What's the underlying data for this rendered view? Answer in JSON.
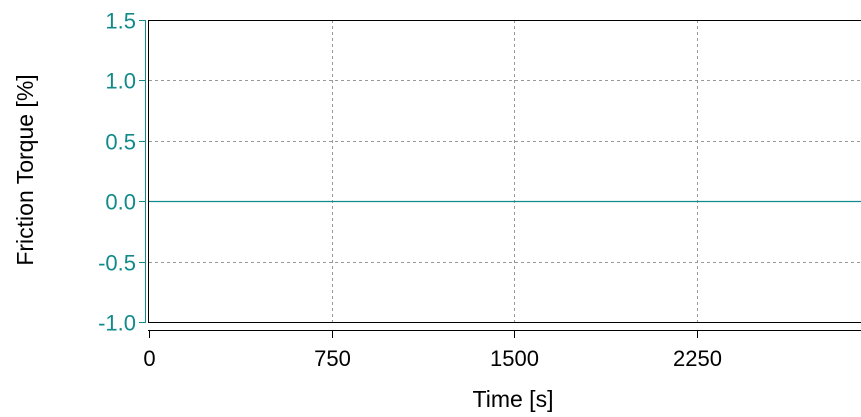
{
  "chart_data": {
    "type": "line",
    "title": "",
    "xlabel": "Time [s]",
    "ylabel": "Friction Torque [%]",
    "xlim": [
      0,
      2925
    ],
    "ylim": [
      -1.0,
      1.5
    ],
    "x_ticks": [
      0,
      750,
      1500,
      2250
    ],
    "x_tick_labels": [
      "0",
      "750",
      "1500",
      "2250"
    ],
    "y_ticks": [
      -1.0,
      -0.5,
      0.0,
      0.5,
      1.0,
      1.5
    ],
    "y_tick_labels": [
      "-1.0",
      "-0.5",
      "0.0",
      "0.5",
      "1.0",
      "1.5"
    ],
    "grid": true,
    "series": [
      {
        "x": [
          0,
          2925
        ],
        "y": [
          0.0,
          0.0
        ]
      }
    ]
  },
  "colors": {
    "series": "#138a8a",
    "y_axis": "#138a8a",
    "grid": "#999999",
    "axes": "#000000"
  }
}
